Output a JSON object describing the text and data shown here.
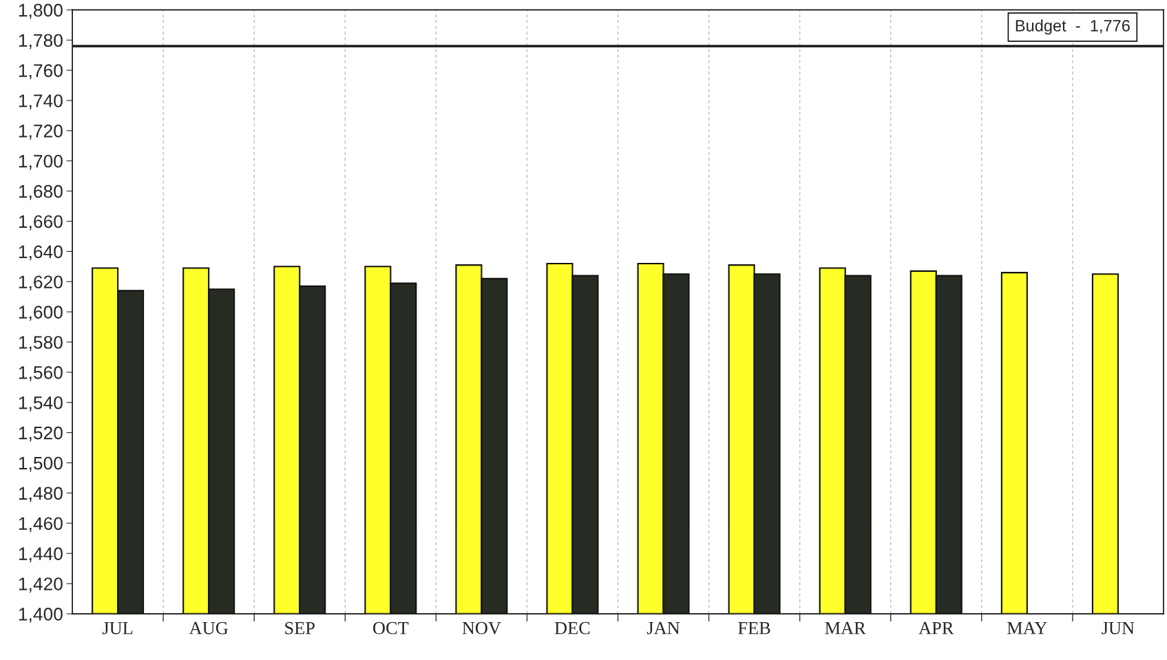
{
  "chart_data": {
    "type": "bar",
    "categories": [
      "JUL",
      "AUG",
      "SEP",
      "OCT",
      "NOV",
      "DEC",
      "JAN",
      "FEB",
      "MAR",
      "APR",
      "MAY",
      "JUN"
    ],
    "series": [
      {
        "color": "#ffff2a",
        "values": [
          1629,
          1629,
          1630,
          1630,
          1631,
          1632,
          1632,
          1631,
          1629,
          1627,
          1626,
          1625
        ]
      },
      {
        "color": "#262b24",
        "values": [
          1614,
          1615,
          1617,
          1619,
          1622,
          1624,
          1625,
          1625,
          1624,
          1624,
          null,
          null
        ]
      }
    ],
    "ylim": [
      1400,
      1800
    ],
    "yticks": [
      {
        "value": 1400,
        "label": "1,400"
      },
      {
        "value": 1420,
        "label": "1,420"
      },
      {
        "value": 1440,
        "label": "1,440"
      },
      {
        "value": 1460,
        "label": "1,460"
      },
      {
        "value": 1480,
        "label": "1,480"
      },
      {
        "value": 1500,
        "label": "1,500"
      },
      {
        "value": 1520,
        "label": "1,520"
      },
      {
        "value": 1540,
        "label": "1,540"
      },
      {
        "value": 1560,
        "label": "1,560"
      },
      {
        "value": 1580,
        "label": "1,580"
      },
      {
        "value": 1600,
        "label": "1,600"
      },
      {
        "value": 1620,
        "label": "1,620"
      },
      {
        "value": 1640,
        "label": "1,640"
      },
      {
        "value": 1660,
        "label": "1,660"
      },
      {
        "value": 1680,
        "label": "1,680"
      },
      {
        "value": 1700,
        "label": "1,700"
      },
      {
        "value": 1720,
        "label": "1,720"
      },
      {
        "value": 1740,
        "label": "1,740"
      },
      {
        "value": 1760,
        "label": "1,760"
      },
      {
        "value": 1780,
        "label": "1,780"
      },
      {
        "value": 1800,
        "label": "1,800"
      }
    ],
    "ref_lines": [
      {
        "axis": "y",
        "value": 1776,
        "label": "Budget  -  1,776",
        "color": "#1a1a1a"
      }
    ],
    "grid": "x"
  }
}
